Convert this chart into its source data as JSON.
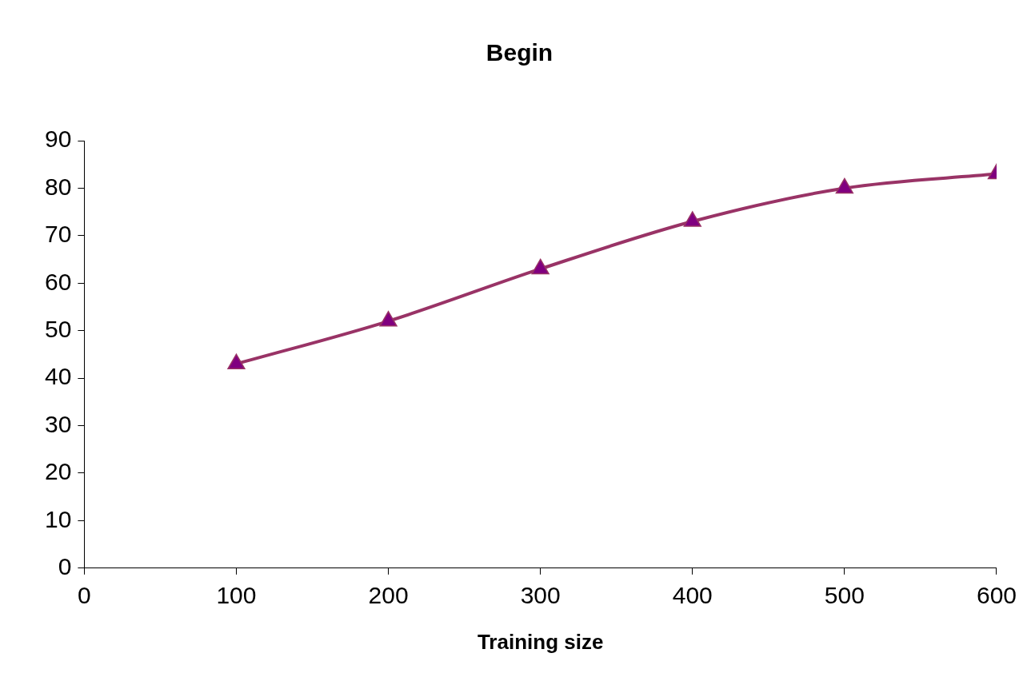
{
  "chart_data": {
    "type": "line",
    "title": "Begin",
    "xlabel": "Training size",
    "x": [
      100,
      200,
      300,
      400,
      500,
      600
    ],
    "series": [
      {
        "color": "#993366",
        "values": [
          43,
          52,
          63,
          73,
          80,
          83
        ]
      }
    ],
    "xlim": [
      0,
      600
    ],
    "xticks": [
      0,
      100,
      200,
      300,
      400,
      500,
      600
    ],
    "ylim": [
      0,
      90
    ],
    "yticks": [
      0,
      10,
      20,
      30,
      40,
      50,
      60,
      70,
      80,
      90
    ],
    "grid": false,
    "legend": false,
    "marker": "triangle",
    "line_style": "solid"
  }
}
